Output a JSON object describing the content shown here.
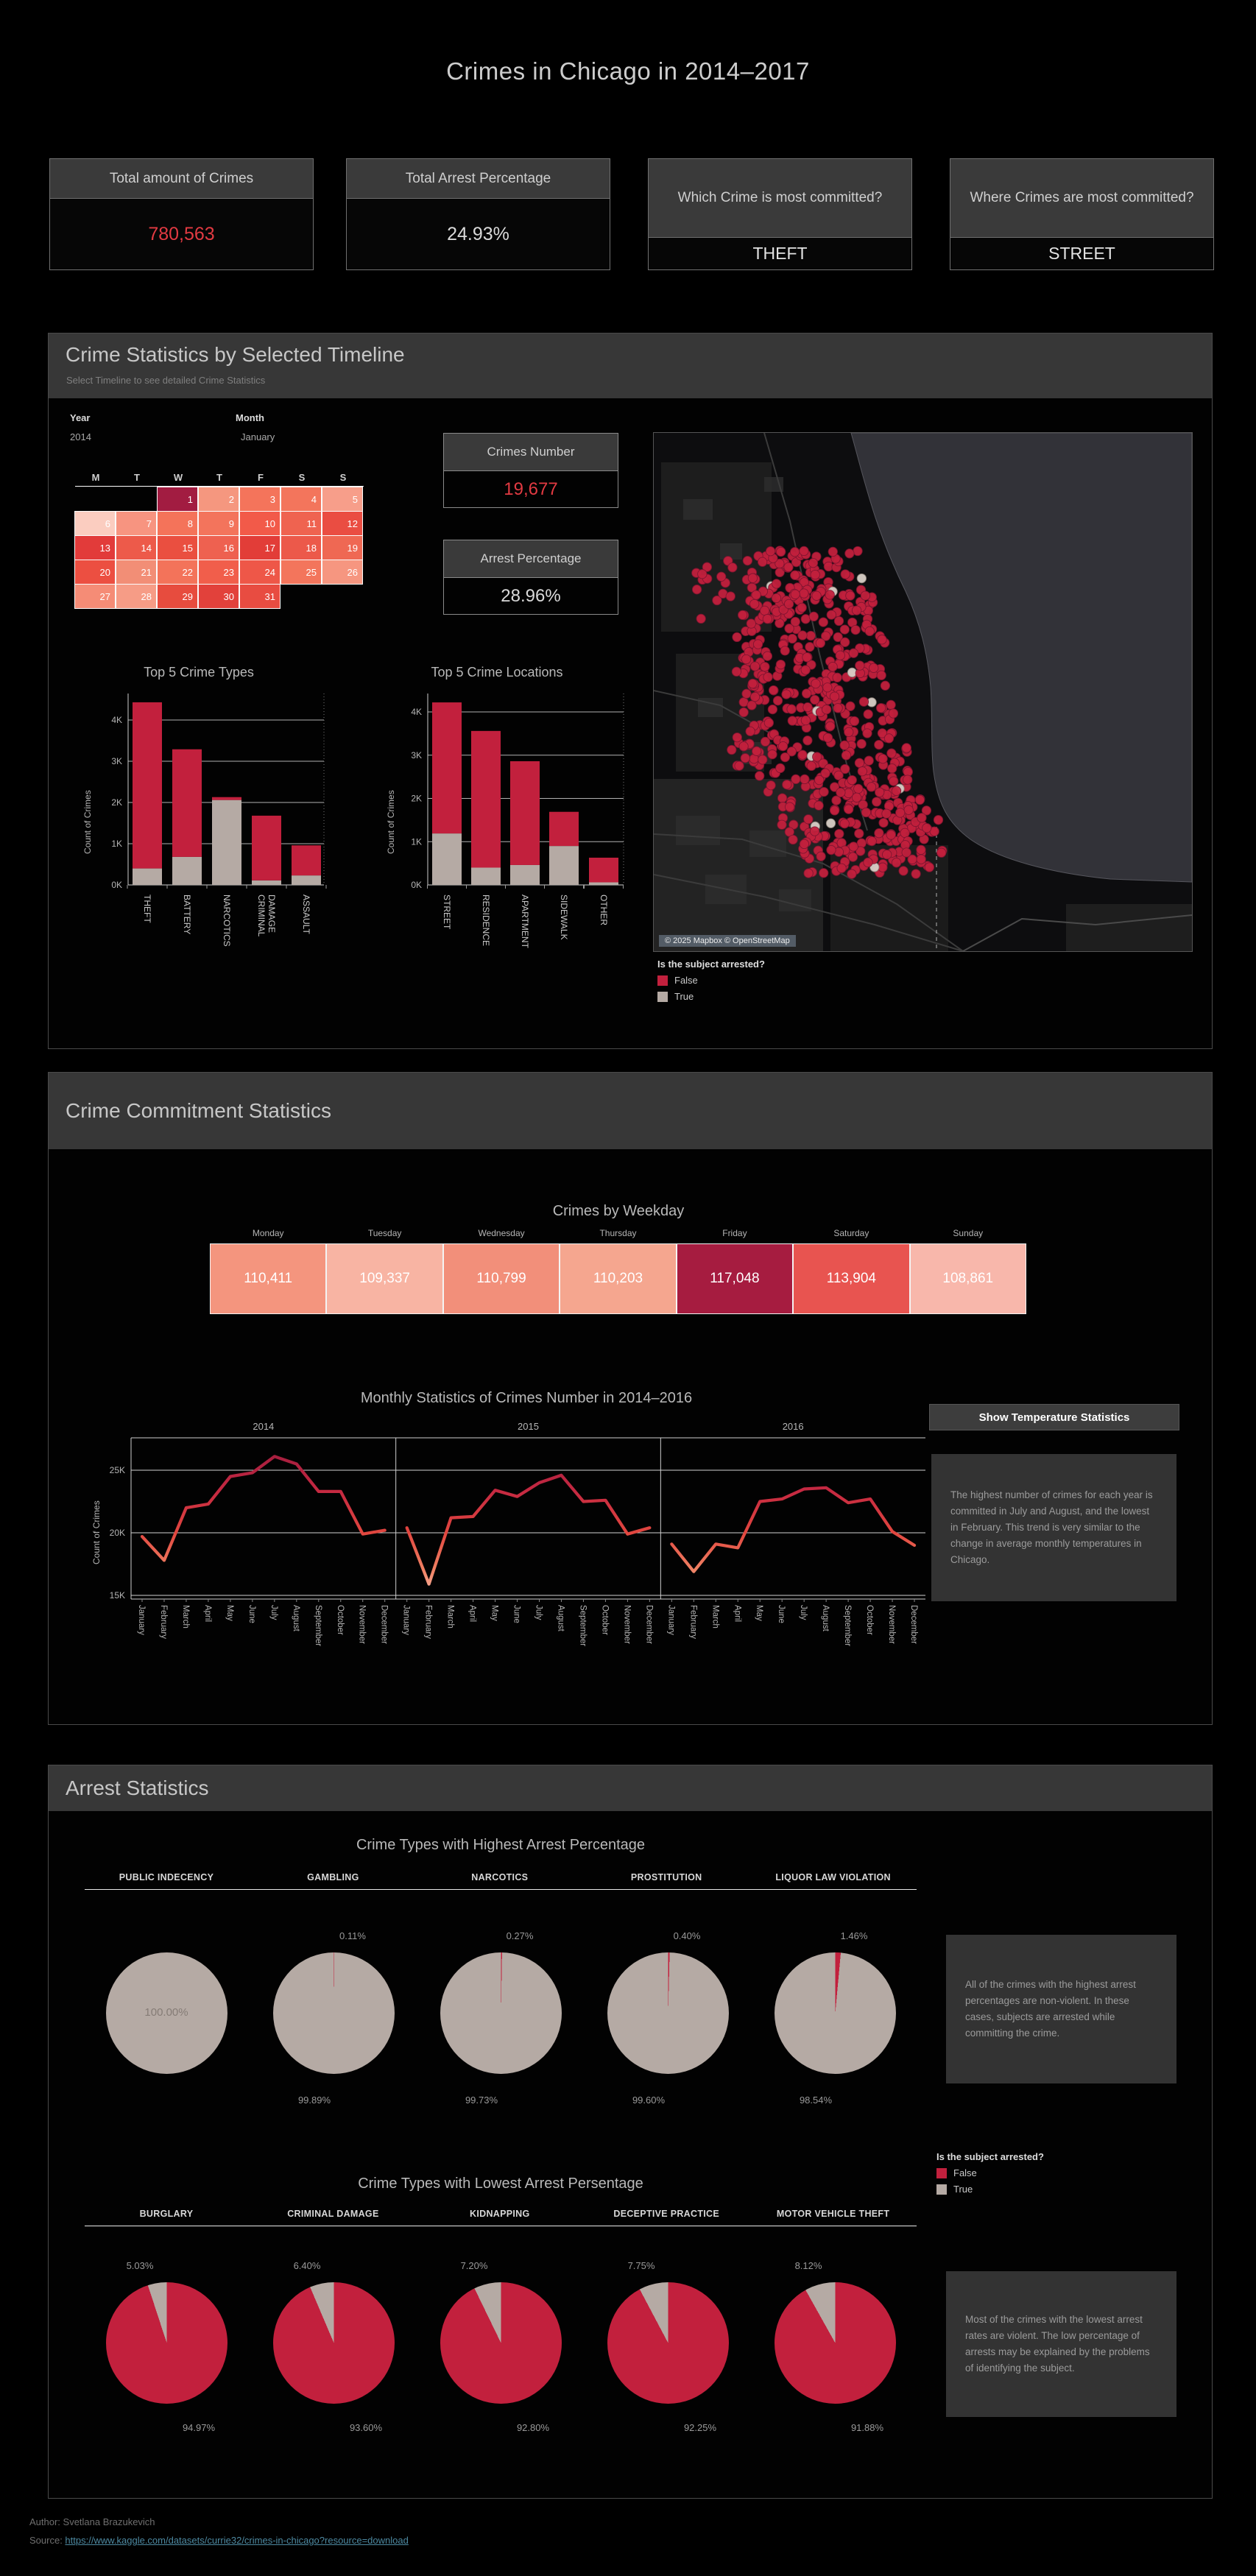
{
  "page": {
    "title": "Crimes in Chicago in 2014–2017",
    "footer_author": "Author: Svetlana Brazukevich",
    "footer_source_label": "Source: ",
    "footer_source_url": "https://www.kaggle.com/datasets/currie32/crimes-in-chicago?resource=download"
  },
  "colors": {
    "accent_red": "#e23a42",
    "false_red": "#c2203d",
    "true_gray": "#b5aaa4",
    "band_bg": "#373737",
    "note_bg": "#333333"
  },
  "kpis": [
    {
      "label": "Total amount of Crimes",
      "value": "780,563",
      "value_color": "#e23a42"
    },
    {
      "label": "Total Arrest Percentage",
      "value": "24.93%",
      "value_color": "#d9d9d9"
    },
    {
      "label": "Which Crime is most committed?",
      "value": "THEFT",
      "value_color": "#e6e6e6"
    },
    {
      "label": "Where Crimes are most committed?",
      "value": "STREET",
      "value_color": "#e6e6e6"
    }
  ],
  "section1": {
    "title": "Crime Statistics by Selected Timeline",
    "subtitle": "Select Timeline to see detailed Crime Statistics",
    "year_label": "Year",
    "year_value": "2014",
    "month_label": "Month",
    "month_value": "January",
    "calendar": {
      "day_headers": [
        "M",
        "T",
        "W",
        "T",
        "F",
        "S",
        "S"
      ],
      "weeks": [
        [
          null,
          null,
          {
            "d": "1",
            "c": "#a21c41"
          },
          {
            "d": "2",
            "c": "#f5977f"
          },
          {
            "d": "3",
            "c": "#f4745b"
          },
          {
            "d": "4",
            "c": "#f3755c"
          },
          {
            "d": "5",
            "c": "#f79e8a"
          }
        ],
        [
          {
            "d": "6",
            "c": "#fbcdc0"
          },
          {
            "d": "7",
            "c": "#f79480"
          },
          {
            "d": "8",
            "c": "#f4735a"
          },
          {
            "d": "9",
            "c": "#f3745c"
          },
          {
            "d": "10",
            "c": "#f25a49"
          },
          {
            "d": "11",
            "c": "#ef6350"
          },
          {
            "d": "12",
            "c": "#ea4d42"
          }
        ],
        [
          {
            "d": "13",
            "c": "#e23b3a"
          },
          {
            "d": "14",
            "c": "#ed5a4a"
          },
          {
            "d": "15",
            "c": "#ea4f40"
          },
          {
            "d": "16",
            "c": "#ee6150"
          },
          {
            "d": "17",
            "c": "#e23d38"
          },
          {
            "d": "18",
            "c": "#ec594a"
          },
          {
            "d": "19",
            "c": "#ef6853"
          }
        ],
        [
          {
            "d": "20",
            "c": "#ec4f41"
          },
          {
            "d": "21",
            "c": "#f28e76"
          },
          {
            "d": "22",
            "c": "#f3735a"
          },
          {
            "d": "23",
            "c": "#f15e4b"
          },
          {
            "d": "24",
            "c": "#ee5748"
          },
          {
            "d": "25",
            "c": "#f3755c"
          },
          {
            "d": "26",
            "c": "#f69680"
          }
        ],
        [
          {
            "d": "27",
            "c": "#f58c76"
          },
          {
            "d": "28",
            "c": "#f69c86"
          },
          {
            "d": "29",
            "c": "#e74c3e"
          },
          {
            "d": "30",
            "c": "#e2413b"
          },
          {
            "d": "31",
            "c": "#e84c41"
          },
          null,
          null
        ]
      ]
    },
    "crimes_number": {
      "label": "Crimes Number",
      "value": "19,677"
    },
    "arrest_percentage": {
      "label": "Arrest Percentage",
      "value": "28.96%"
    },
    "map": {
      "attribution": "© 2025 Mapbox © OpenStreetMap"
    },
    "legend": {
      "title": "Is the subject arrested?",
      "false_label": "False",
      "true_label": "True"
    }
  },
  "section2": {
    "title": "Crime Commitment Statistics",
    "button_label": "Show Temperature Statistics",
    "note": "The highest number of crimes for each year is committed in July and August, and the lowest in February. This trend is very similar to the change in average monthly temperatures in Chicago."
  },
  "section3": {
    "title": "Arrest Statistics",
    "legend": {
      "title": "Is the subject arrested?",
      "false_label": "False",
      "true_label": "True"
    },
    "note_high": "All of the crimes with the highest arrest percentages are non-violent. In these cases, subjects are arrested while committing the crime.",
    "note_low": "Most of the crimes with the lowest arrest rates are violent. The low percentage of arrests may be explained by the problems of identifying the subject."
  },
  "chart_data": [
    {
      "id": "top5_crime_types",
      "type": "bar",
      "stacked": true,
      "title": "Top 5 Crime Types",
      "ylabel": "Count of Crimes",
      "yticks": [
        "0K",
        "1K",
        "2K",
        "3K",
        "4K"
      ],
      "ylim": [
        0,
        4450
      ],
      "categories": [
        "THEFT",
        "BATTERY",
        "NARCOTICS",
        "CRIMINAL DAMAGE",
        "ASSAULT"
      ],
      "series": [
        {
          "name": "True (arrested)",
          "color": "#b5aaa4",
          "values": [
            400,
            680,
            2060,
            110,
            230
          ]
        },
        {
          "name": "False (not arrested)",
          "color": "#c2203d",
          "values": [
            4030,
            2610,
            70,
            1570,
            730
          ]
        }
      ]
    },
    {
      "id": "top5_crime_locations",
      "type": "bar",
      "stacked": true,
      "title": "Top 5 Crime Locations",
      "ylabel": "Count of Crimes",
      "yticks": [
        "0K",
        "1K",
        "2K",
        "3K",
        "4K"
      ],
      "ylim": [
        0,
        4450
      ],
      "categories": [
        "STREET",
        "RESIDENCE",
        "APARTMENT",
        "SIDEWALK",
        "OTHER"
      ],
      "series": [
        {
          "name": "True (arrested)",
          "color": "#b5aaa4",
          "values": [
            1190,
            400,
            460,
            900,
            60
          ]
        },
        {
          "name": "False (not arrested)",
          "color": "#c2203d",
          "values": [
            3030,
            3160,
            2400,
            790,
            570
          ]
        }
      ]
    },
    {
      "id": "crimes_by_weekday",
      "type": "heatmap",
      "title": "Crimes by Weekday",
      "categories": [
        "Monday",
        "Tuesday",
        "Wednesday",
        "Thursday",
        "Friday",
        "Saturday",
        "Sunday"
      ],
      "values": [
        110411,
        109337,
        110799,
        110203,
        117048,
        113904,
        108861
      ],
      "display": [
        "110,411",
        "109,337",
        "110,799",
        "110,203",
        "117,048",
        "113,904",
        "108,861"
      ],
      "cell_colors": [
        "#f4957e",
        "#f8b4a3",
        "#f28f7a",
        "#f5a68f",
        "#a61c40",
        "#e85450",
        "#f8b7ab"
      ]
    },
    {
      "id": "monthly_crimes",
      "type": "line",
      "title": "Monthly Statistics of Crimes Number in 2014–2016",
      "ylabel": "Count of Crimes",
      "yticks": [
        "15K",
        "20K",
        "25K"
      ],
      "ylim": [
        14600,
        27500
      ],
      "grid": true,
      "x_months": [
        "January",
        "February",
        "March",
        "April",
        "May",
        "June",
        "July",
        "August",
        "September",
        "October",
        "November",
        "December"
      ],
      "series": [
        {
          "name": "2014",
          "values": [
            19700,
            17800,
            22000,
            22300,
            24500,
            24800,
            26100,
            25500,
            23300,
            23300,
            19900,
            20200
          ]
        },
        {
          "name": "2015",
          "values": [
            20400,
            15900,
            21200,
            21300,
            23400,
            22900,
            24000,
            24600,
            22500,
            22600,
            19900,
            20400
          ]
        },
        {
          "name": "2016",
          "values": [
            19100,
            16900,
            19100,
            18800,
            22500,
            22700,
            23500,
            23600,
            22400,
            22700,
            20100,
            19000
          ]
        }
      ]
    },
    {
      "id": "highest_arrest_pies",
      "type": "pie",
      "title": "Crime Types with Highest Arrest Percentage",
      "false_color": "#c2203d",
      "true_color": "#b5aaa4",
      "pies": [
        {
          "name": "PUBLIC INDECENCY",
          "false_pct": 0,
          "true_pct": 100.0,
          "center_label": "100.00%",
          "top_label": "",
          "bottom_label": ""
        },
        {
          "name": "GAMBLING",
          "false_pct": 0.11,
          "true_pct": 99.89,
          "top_label": "0.11%",
          "bottom_label": "99.89%"
        },
        {
          "name": "NARCOTICS",
          "false_pct": 0.27,
          "true_pct": 99.73,
          "top_label": "0.27%",
          "bottom_label": "99.73%"
        },
        {
          "name": "PROSTITUTION",
          "false_pct": 0.4,
          "true_pct": 99.6,
          "top_label": "0.40%",
          "bottom_label": "99.60%"
        },
        {
          "name": "LIQUOR LAW VIOLATION",
          "false_pct": 1.46,
          "true_pct": 98.54,
          "top_label": "1.46%",
          "bottom_label": "98.54%"
        }
      ]
    },
    {
      "id": "lowest_arrest_pies",
      "type": "pie",
      "title": "Crime Types with Lowest Arrest Persentage",
      "false_color": "#c2203d",
      "true_color": "#b5aaa4",
      "pies": [
        {
          "name": "BURGLARY",
          "false_pct": 94.97,
          "true_pct": 5.03,
          "top_label": "5.03%",
          "bottom_label": "94.97%"
        },
        {
          "name": "CRIMINAL DAMAGE",
          "false_pct": 93.6,
          "true_pct": 6.4,
          "top_label": "6.40%",
          "bottom_label": "93.60%"
        },
        {
          "name": "KIDNAPPING",
          "false_pct": 92.8,
          "true_pct": 7.2,
          "top_label": "7.20%",
          "bottom_label": "92.80%"
        },
        {
          "name": "DECEPTIVE PRACTICE",
          "false_pct": 92.25,
          "true_pct": 7.75,
          "top_label": "7.75%",
          "bottom_label": "92.25%"
        },
        {
          "name": "MOTOR VEHICLE THEFT",
          "false_pct": 91.88,
          "true_pct": 8.12,
          "top_label": "8.12%",
          "bottom_label": "91.88%"
        }
      ]
    }
  ]
}
